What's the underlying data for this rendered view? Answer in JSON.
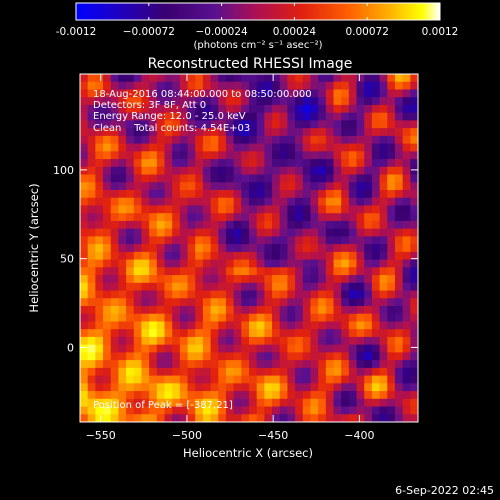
{
  "chart_data": {
    "type": "heatmap",
    "title": "Reconstructed RHESSI Image",
    "xlabel": "Heliocentric X (arcsec)",
    "ylabel": "Heliocentric Y (arcsec)",
    "xlim": [
      -562,
      -366
    ],
    "ylim": [
      -42,
      154
    ],
    "x_ticks": [
      -550,
      -500,
      -450,
      -400
    ],
    "y_ticks": [
      0,
      50,
      100
    ],
    "colorbar": {
      "range": [
        -0.0012,
        0.0012
      ],
      "ticks": [
        "-0.0012",
        "−0.00072",
        "−0.00024",
        "0.00024",
        "0.00072",
        "0.0012"
      ],
      "tick_values": [
        -0.0012,
        -0.00072,
        -0.00024,
        0.00024,
        0.00072,
        0.0012
      ],
      "unit_label": "(photons cm⁻² s⁻¹ asec⁻²)",
      "colormap": [
        "#0000ff",
        "#2000c0",
        "#3a0070",
        "#5a1090",
        "#b01050",
        "#e02010",
        "#ff6000",
        "#ffb000",
        "#ffff00",
        "#ffffff"
      ]
    },
    "annotations": [
      "18-Aug-2016 08:44:00.000 to 08:50:00.000",
      "Detectors: 3F 8F, Att 0",
      "Energy Range: 12.0 - 25.0 keV",
      "Clean    Total counts: 4.54E+03"
    ],
    "peak_text": "Position of Peak = [-387,21]",
    "peak": {
      "x": -387,
      "y": 21
    },
    "grid": false
  },
  "timestamp": "6-Sep-2022 02:45"
}
